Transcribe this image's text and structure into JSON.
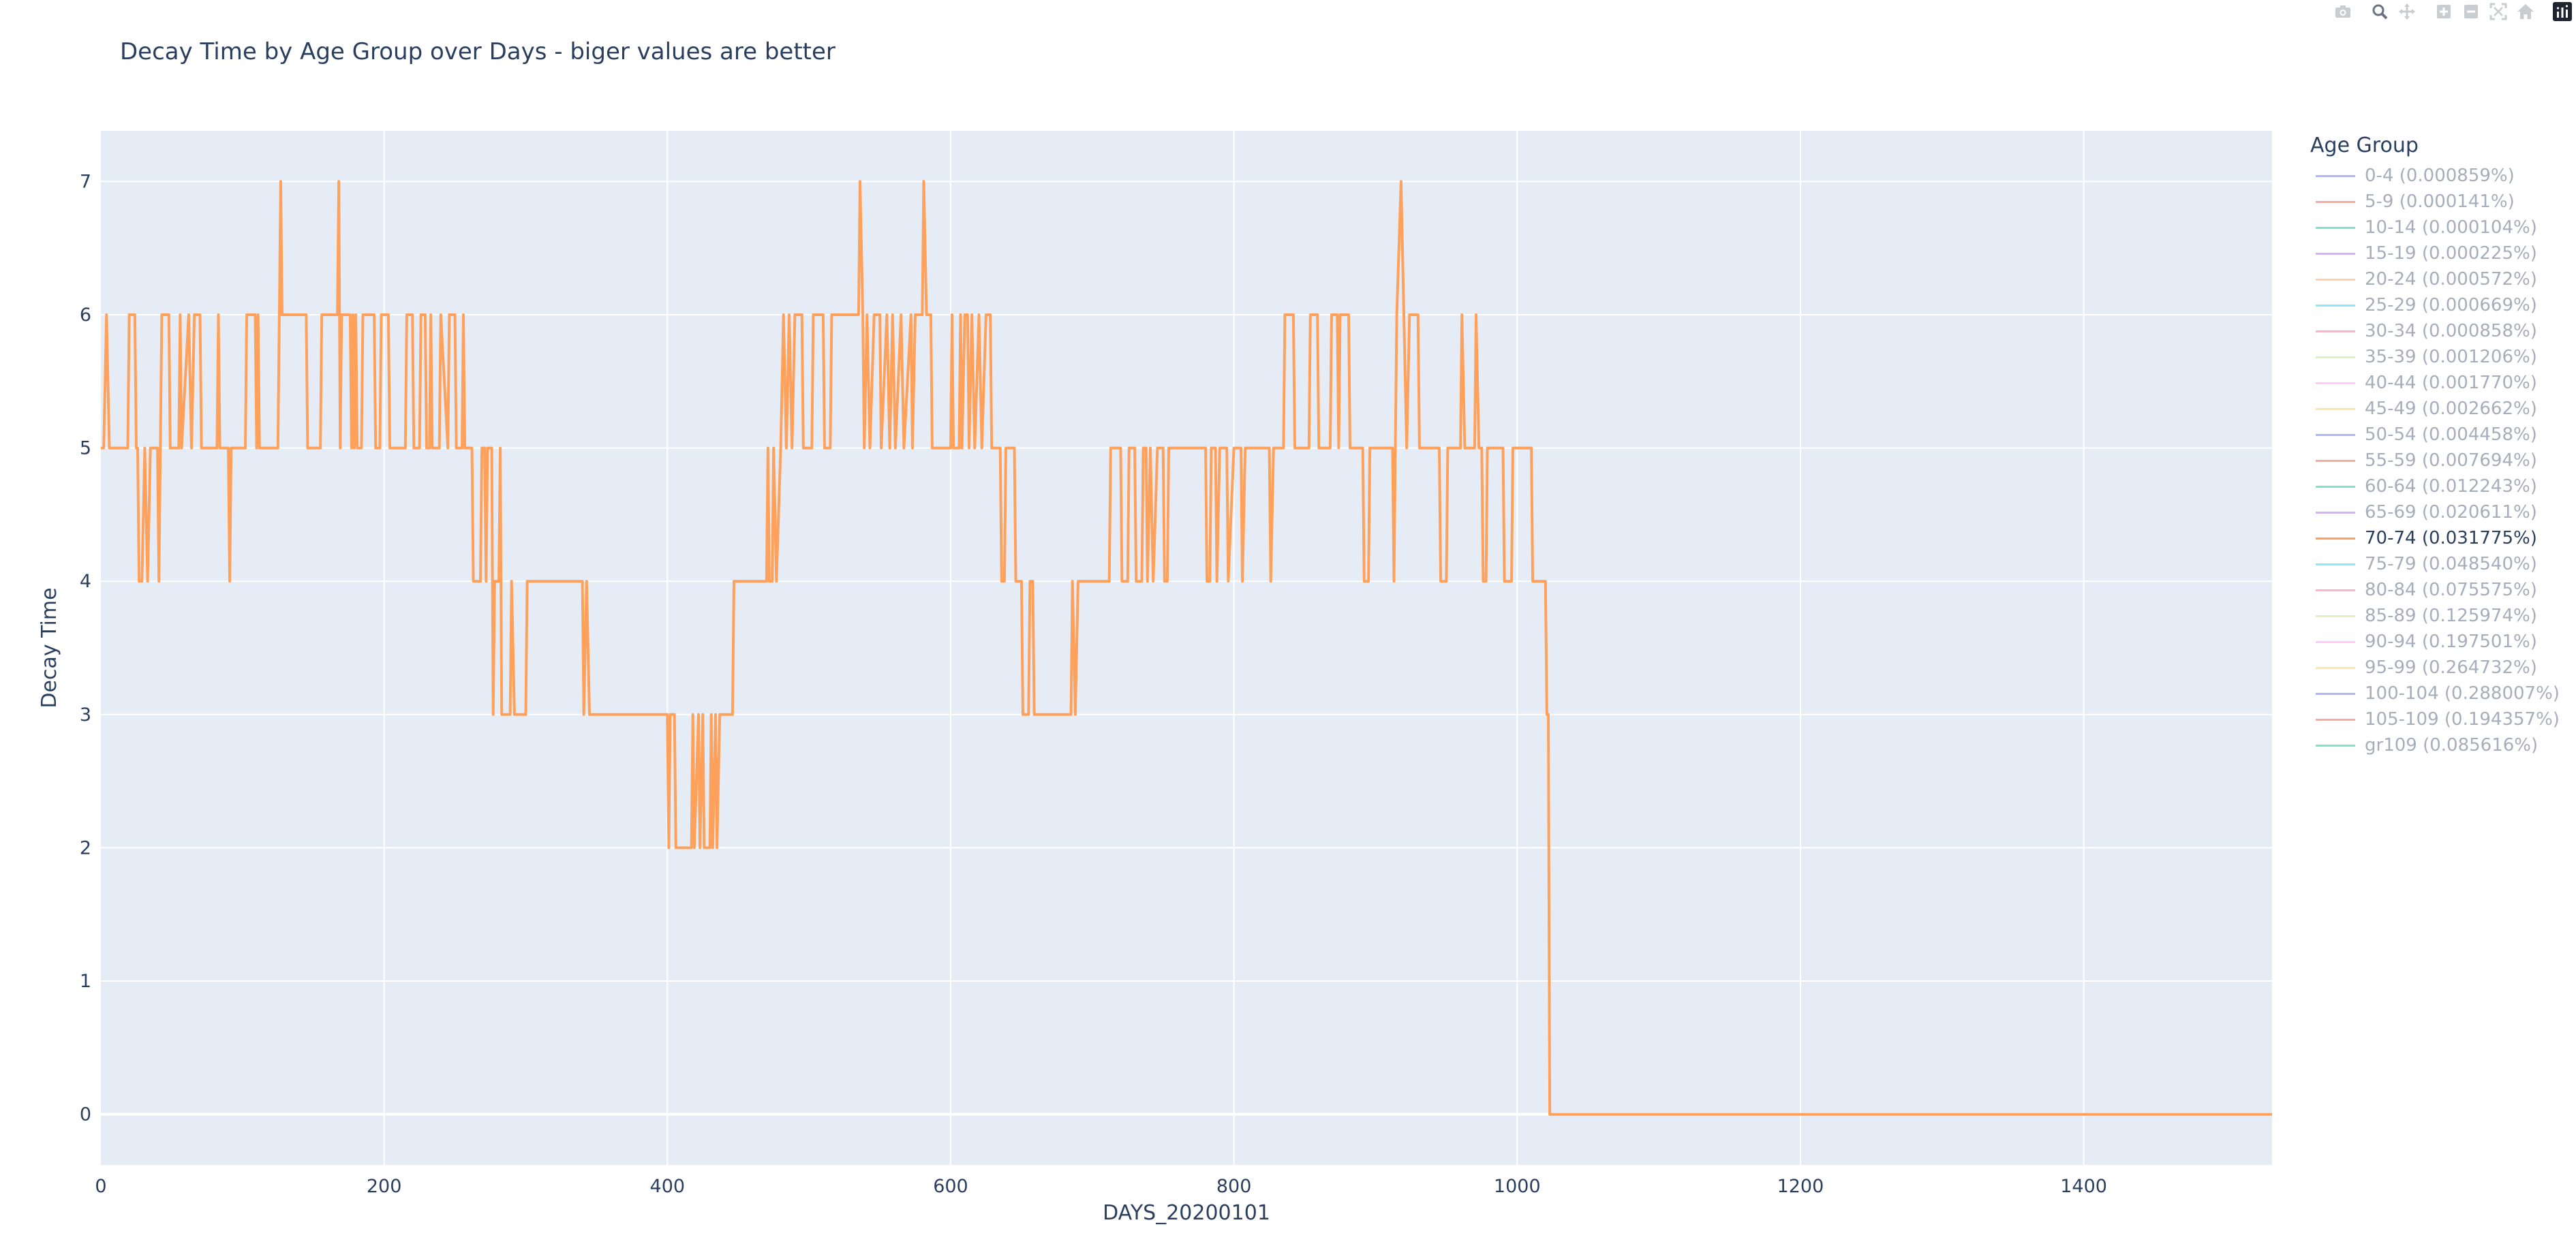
{
  "title": "Decay Time by Age Group over Days - biger values are better",
  "legend": {
    "title": "Age Group",
    "items": [
      {
        "label": "0-4 (0.000859%)",
        "color": "#636efa",
        "visible": false
      },
      {
        "label": "5-9 (0.000141%)",
        "color": "#ef553b",
        "visible": false
      },
      {
        "label": "10-14 (0.000104%)",
        "color": "#00cc96",
        "visible": false
      },
      {
        "label": "15-19 (0.000225%)",
        "color": "#ab63fa",
        "visible": false
      },
      {
        "label": "20-24 (0.000572%)",
        "color": "#ffa15a",
        "visible": false
      },
      {
        "label": "25-29 (0.000669%)",
        "color": "#19d3f3",
        "visible": false
      },
      {
        "label": "30-34 (0.000858%)",
        "color": "#ff6692",
        "visible": false
      },
      {
        "label": "35-39 (0.001206%)",
        "color": "#b6e880",
        "visible": false
      },
      {
        "label": "40-44 (0.001770%)",
        "color": "#ff97ff",
        "visible": false
      },
      {
        "label": "45-49 (0.002662%)",
        "color": "#fecb52",
        "visible": false
      },
      {
        "label": "50-54 (0.004458%)",
        "color": "#636efa",
        "visible": false
      },
      {
        "label": "55-59 (0.007694%)",
        "color": "#ef553b",
        "visible": false
      },
      {
        "label": "60-64 (0.012243%)",
        "color": "#00cc96",
        "visible": false
      },
      {
        "label": "65-69 (0.020611%)",
        "color": "#ab63fa",
        "visible": false
      },
      {
        "label": "70-74 (0.031775%)",
        "color": "#ffa15a",
        "visible": true
      },
      {
        "label": "75-79 (0.048540%)",
        "color": "#19d3f3",
        "visible": false
      },
      {
        "label": "80-84 (0.075575%)",
        "color": "#ff6692",
        "visible": false
      },
      {
        "label": "85-89 (0.125974%)",
        "color": "#b6e880",
        "visible": false
      },
      {
        "label": "90-94 (0.197501%)",
        "color": "#ff97ff",
        "visible": false
      },
      {
        "label": "95-99 (0.264732%)",
        "color": "#fecb52",
        "visible": false
      },
      {
        "label": "100-104 (0.288007%)",
        "color": "#636efa",
        "visible": false
      },
      {
        "label": "105-109 (0.194357%)",
        "color": "#ef553b",
        "visible": false
      },
      {
        "label": "gr109 (0.085616%)",
        "color": "#00cc96",
        "visible": false
      }
    ]
  },
  "modebar": [
    "camera-icon",
    "zoom-icon",
    "pan-icon",
    "zoom-in-icon",
    "zoom-out-icon",
    "autoscale-icon",
    "reset-axes-icon",
    "plotly-logo-icon"
  ],
  "chart_data": {
    "type": "line",
    "title": "Decay Time by Age Group over Days - biger values are better",
    "xlabel": "DAYS_20200101",
    "ylabel": "Decay Time",
    "xlim": [
      0,
      1533
    ],
    "ylim": [
      -0.38,
      7.38
    ],
    "xticks": [
      0,
      200,
      400,
      600,
      800,
      1000,
      1200,
      1400
    ],
    "yticks": [
      0,
      1,
      2,
      3,
      4,
      5,
      6,
      7
    ],
    "grid": true,
    "legend_position": "right",
    "plot_bgcolor": "#e5ecf6",
    "series": [
      {
        "name": "70-74 (0.031775%)",
        "color": "#ffa15a",
        "points": [
          [
            0,
            5
          ],
          [
            2,
            5
          ],
          [
            4,
            6
          ],
          [
            6,
            5
          ],
          [
            19,
            5
          ],
          [
            20,
            6
          ],
          [
            24,
            6
          ],
          [
            25,
            5
          ],
          [
            26,
            5
          ],
          [
            27,
            4
          ],
          [
            29,
            4
          ],
          [
            31,
            5
          ],
          [
            33,
            4
          ],
          [
            35,
            5
          ],
          [
            40,
            5
          ],
          [
            41,
            4
          ],
          [
            42,
            5
          ],
          [
            43,
            6
          ],
          [
            48,
            6
          ],
          [
            49,
            5
          ],
          [
            55,
            5
          ],
          [
            56,
            6
          ],
          [
            57,
            5
          ],
          [
            62,
            6
          ],
          [
            64,
            5
          ],
          [
            66,
            6
          ],
          [
            70,
            6
          ],
          [
            71,
            5
          ],
          [
            82,
            5
          ],
          [
            83,
            6
          ],
          [
            84,
            5
          ],
          [
            90,
            5
          ],
          [
            91,
            4
          ],
          [
            92,
            5
          ],
          [
            102,
            5
          ],
          [
            103,
            6
          ],
          [
            109,
            6
          ],
          [
            110,
            5
          ],
          [
            111,
            6
          ],
          [
            112,
            5
          ],
          [
            125,
            5
          ],
          [
            126,
            6
          ],
          [
            127,
            7
          ],
          [
            128,
            6
          ],
          [
            145,
            6
          ],
          [
            146,
            5
          ],
          [
            155,
            5
          ],
          [
            156,
            6
          ],
          [
            167,
            6
          ],
          [
            168,
            7
          ],
          [
            169,
            5
          ],
          [
            170,
            6
          ],
          [
            176,
            6
          ],
          [
            177,
            5
          ],
          [
            178,
            6
          ],
          [
            179,
            5
          ],
          [
            180,
            6
          ],
          [
            181,
            5
          ],
          [
            184,
            5
          ],
          [
            185,
            6
          ],
          [
            193,
            6
          ],
          [
            194,
            5
          ],
          [
            197,
            5
          ],
          [
            198,
            6
          ],
          [
            203,
            6
          ],
          [
            204,
            5
          ],
          [
            215,
            5
          ],
          [
            216,
            6
          ],
          [
            220,
            6
          ],
          [
            221,
            5
          ],
          [
            225,
            5
          ],
          [
            226,
            6
          ],
          [
            229,
            6
          ],
          [
            230,
            5
          ],
          [
            232,
            5
          ],
          [
            233,
            6
          ],
          [
            234,
            5
          ],
          [
            239,
            5
          ],
          [
            240,
            6
          ],
          [
            245,
            5
          ],
          [
            246,
            6
          ],
          [
            250,
            6
          ],
          [
            251,
            5
          ],
          [
            255,
            5
          ],
          [
            256,
            6
          ],
          [
            257,
            5
          ],
          [
            262,
            5
          ],
          [
            263,
            4
          ],
          [
            268,
            4
          ],
          [
            269,
            5
          ],
          [
            271,
            5
          ],
          [
            272,
            4
          ],
          [
            273,
            5
          ],
          [
            276,
            5
          ],
          [
            277,
            3
          ],
          [
            278,
            4
          ],
          [
            281,
            4
          ],
          [
            282,
            5
          ],
          [
            283,
            3
          ],
          [
            289,
            3
          ],
          [
            290,
            4
          ],
          [
            292,
            3
          ],
          [
            300,
            3
          ],
          [
            301,
            4
          ],
          [
            340,
            4
          ],
          [
            341,
            3
          ],
          [
            343,
            4
          ],
          [
            345,
            3
          ],
          [
            400,
            3
          ],
          [
            401,
            2
          ],
          [
            402,
            3
          ],
          [
            405,
            3
          ],
          [
            406,
            2
          ],
          [
            417,
            2
          ],
          [
            418,
            3
          ],
          [
            419,
            2
          ],
          [
            422,
            3
          ],
          [
            423,
            2
          ],
          [
            425,
            3
          ],
          [
            426,
            2
          ],
          [
            430,
            2
          ],
          [
            431,
            3
          ],
          [
            432,
            2
          ],
          [
            434,
            3
          ],
          [
            435,
            2
          ],
          [
            437,
            3
          ],
          [
            446,
            3
          ],
          [
            447,
            4
          ],
          [
            470,
            4
          ],
          [
            471,
            5
          ],
          [
            472,
            4
          ],
          [
            474,
            4
          ],
          [
            475,
            5
          ],
          [
            477,
            4
          ],
          [
            480,
            5
          ],
          [
            482,
            6
          ],
          [
            484,
            5
          ],
          [
            486,
            6
          ],
          [
            488,
            5
          ],
          [
            490,
            6
          ],
          [
            495,
            6
          ],
          [
            496,
            5
          ],
          [
            502,
            5
          ],
          [
            503,
            6
          ],
          [
            510,
            6
          ],
          [
            511,
            5
          ],
          [
            515,
            5
          ],
          [
            516,
            6
          ],
          [
            535,
            6
          ],
          [
            536,
            7
          ],
          [
            538,
            6
          ],
          [
            539,
            5
          ],
          [
            541,
            6
          ],
          [
            543,
            5
          ],
          [
            546,
            6
          ],
          [
            550,
            6
          ],
          [
            551,
            5
          ],
          [
            555,
            6
          ],
          [
            557,
            5
          ],
          [
            559,
            6
          ],
          [
            561,
            5
          ],
          [
            565,
            6
          ],
          [
            567,
            5
          ],
          [
            572,
            6
          ],
          [
            573,
            5
          ],
          [
            575,
            6
          ],
          [
            580,
            6
          ],
          [
            581,
            7
          ],
          [
            583,
            6
          ],
          [
            586,
            6
          ],
          [
            587,
            5
          ],
          [
            600,
            5
          ],
          [
            601,
            6
          ],
          [
            602,
            5
          ],
          [
            606,
            5
          ],
          [
            607,
            6
          ],
          [
            608,
            5
          ],
          [
            610,
            6
          ],
          [
            612,
            6
          ],
          [
            613,
            5
          ],
          [
            615,
            6
          ],
          [
            617,
            5
          ],
          [
            620,
            6
          ],
          [
            622,
            5
          ],
          [
            625,
            6
          ],
          [
            628,
            6
          ],
          [
            629,
            5
          ],
          [
            635,
            5
          ],
          [
            636,
            4
          ],
          [
            638,
            4
          ],
          [
            639,
            5
          ],
          [
            645,
            5
          ],
          [
            646,
            4
          ],
          [
            650,
            4
          ],
          [
            651,
            3
          ],
          [
            655,
            3
          ],
          [
            656,
            4
          ],
          [
            658,
            4
          ],
          [
            659,
            3
          ],
          [
            685,
            3
          ],
          [
            686,
            4
          ],
          [
            688,
            3
          ],
          [
            690,
            4
          ],
          [
            712,
            4
          ],
          [
            713,
            5
          ],
          [
            720,
            5
          ],
          [
            721,
            4
          ],
          [
            725,
            4
          ],
          [
            726,
            5
          ],
          [
            730,
            5
          ],
          [
            731,
            4
          ],
          [
            735,
            4
          ],
          [
            736,
            5
          ],
          [
            738,
            5
          ],
          [
            739,
            4
          ],
          [
            741,
            5
          ],
          [
            743,
            4
          ],
          [
            746,
            5
          ],
          [
            750,
            5
          ],
          [
            751,
            4
          ],
          [
            753,
            4
          ],
          [
            754,
            5
          ],
          [
            780,
            5
          ],
          [
            781,
            4
          ],
          [
            783,
            4
          ],
          [
            784,
            5
          ],
          [
            787,
            5
          ],
          [
            788,
            4
          ],
          [
            790,
            5
          ],
          [
            795,
            5
          ],
          [
            796,
            4
          ],
          [
            800,
            5
          ],
          [
            805,
            5
          ],
          [
            806,
            4
          ],
          [
            808,
            5
          ],
          [
            825,
            5
          ],
          [
            826,
            4
          ],
          [
            828,
            5
          ],
          [
            835,
            5
          ],
          [
            836,
            6
          ],
          [
            842,
            6
          ],
          [
            843,
            5
          ],
          [
            853,
            5
          ],
          [
            854,
            6
          ],
          [
            859,
            6
          ],
          [
            860,
            5
          ],
          [
            868,
            5
          ],
          [
            869,
            6
          ],
          [
            873,
            6
          ],
          [
            874,
            5
          ],
          [
            875,
            6
          ],
          [
            881,
            6
          ],
          [
            882,
            5
          ],
          [
            891,
            5
          ],
          [
            892,
            4
          ],
          [
            895,
            4
          ],
          [
            896,
            5
          ],
          [
            912,
            5
          ],
          [
            913,
            4
          ],
          [
            915,
            6
          ],
          [
            918,
            7
          ],
          [
            920,
            6
          ],
          [
            922,
            5
          ],
          [
            924,
            6
          ],
          [
            930,
            6
          ],
          [
            931,
            5
          ],
          [
            945,
            5
          ],
          [
            946,
            4
          ],
          [
            950,
            4
          ],
          [
            951,
            5
          ],
          [
            960,
            5
          ],
          [
            961,
            6
          ],
          [
            963,
            5
          ],
          [
            970,
            5
          ],
          [
            971,
            6
          ],
          [
            973,
            5
          ],
          [
            975,
            5
          ],
          [
            976,
            4
          ],
          [
            978,
            4
          ],
          [
            979,
            5
          ],
          [
            990,
            5
          ],
          [
            991,
            4
          ],
          [
            996,
            4
          ],
          [
            997,
            5
          ],
          [
            1010,
            5
          ],
          [
            1011,
            4
          ],
          [
            1020,
            4
          ],
          [
            1021,
            3
          ],
          [
            1022,
            3
          ],
          [
            1023,
            0
          ],
          [
            1533,
            0
          ]
        ]
      }
    ]
  }
}
